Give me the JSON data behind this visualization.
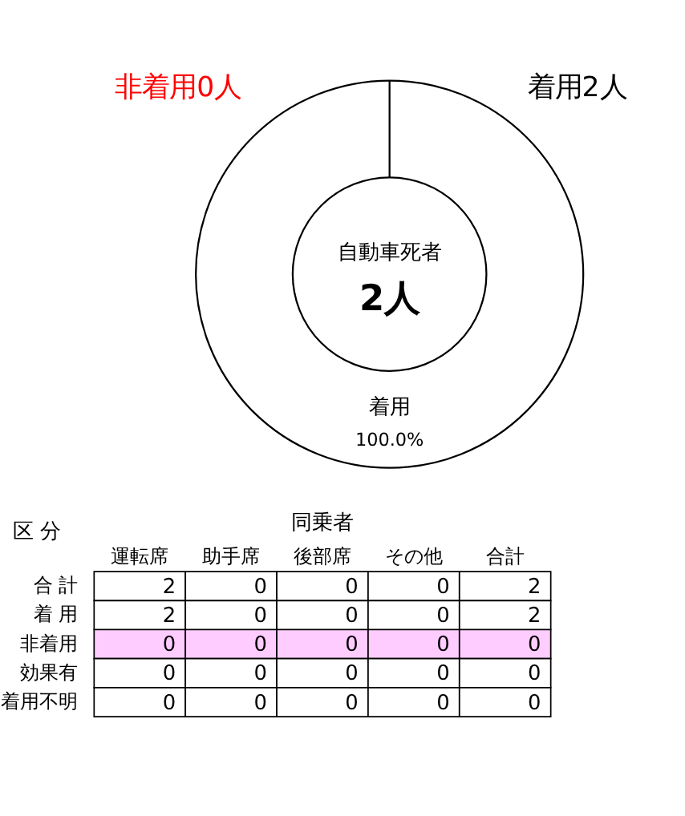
{
  "chart_data": [
    {
      "type": "donut",
      "categories": [
        "着用",
        "非着用"
      ],
      "values": [
        100,
        0
      ],
      "colors": [
        "#ffffff",
        "#ffffff"
      ],
      "value_labels": [
        "100.0%",
        null
      ],
      "annotations": [
        "0人",
        "2人",
        "自動車死者",
        "2人"
      ]
    },
    {
      "type": "heatmap",
      "categories": [
        "運転席",
        "助手席",
        "後部席",
        "その他",
        "合計"
      ],
      "y_categories": [
        "合 計",
        "着 用",
        "非着用",
        "効果有",
        "着用不明"
      ],
      "ylabel": "区 分",
      "annotations": [
        "同乗者"
      ],
      "cells": [
        [
          2,
          0,
          0,
          0,
          2
        ],
        [
          2,
          0,
          0,
          0,
          2
        ],
        [
          0,
          0,
          0,
          0,
          0
        ],
        [
          0,
          0,
          0,
          0,
          0
        ],
        [
          0,
          0,
          0,
          0,
          0
        ]
      ],
      "colors": [
        "#ffffff",
        "#ffffff",
        "#ffccff",
        "#ffffff",
        "#ffffff"
      ],
      "data_labels": true
    }
  ]
}
